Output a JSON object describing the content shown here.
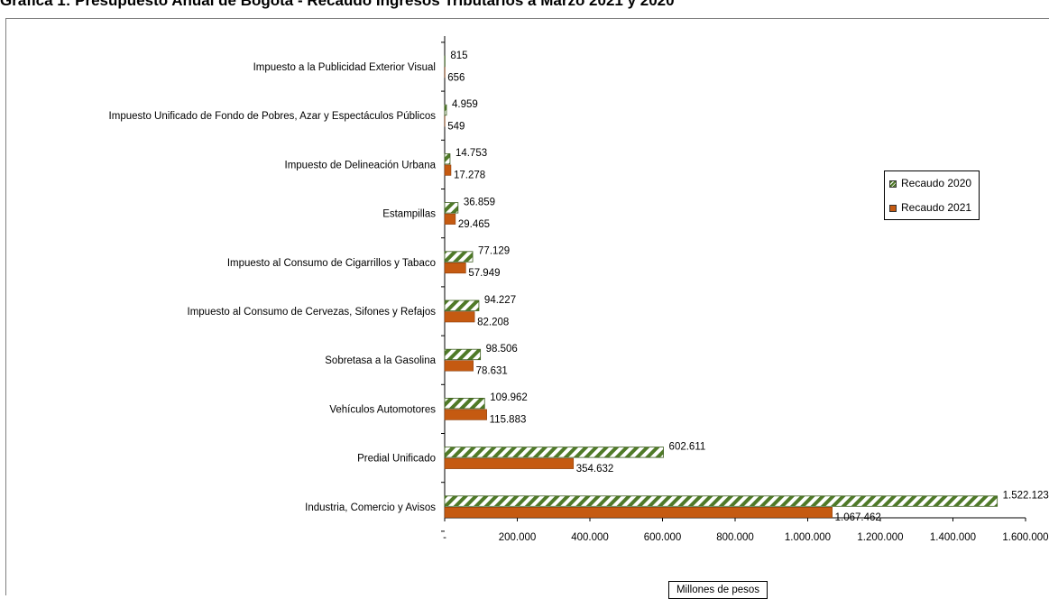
{
  "page_title": "Gráfica 1: Presupuesto Anual de Bogotá - Recaudo Ingresos Tributarios a Marzo 2021 y 2020",
  "chart_data": {
    "type": "bar",
    "orientation": "horizontal",
    "categories": [
      "Impuesto a la Publicidad Exterior Visual",
      "Impuesto Unificado de Fondo de Pobres, Azar y Espectáculos Públicos",
      "Impuesto de Delineación Urbana",
      "Estampillas",
      "Impuesto al Consumo de Cigarrillos y Tabaco",
      "Impuesto al Consumo de Cervezas, Sifones y Refajos",
      "Sobretasa a la Gasolina",
      "Vehículos Automotores",
      "Predial Unificado",
      "Industria, Comercio y Avisos"
    ],
    "series": [
      {
        "name": "Recaudo 2020",
        "color": "#4f7a28",
        "pattern": "diagonal-stripes",
        "values": [
          815,
          4959,
          14753,
          36859,
          77129,
          94227,
          98506,
          109962,
          602611,
          1522123
        ],
        "labels": [
          "815",
          "4.959",
          "14.753",
          "36.859",
          "77.129",
          "94.227",
          "98.506",
          "109.962",
          "602.611",
          "1.522.123"
        ]
      },
      {
        "name": "Recaudo 2021",
        "color": "#c55a11",
        "pattern": "solid",
        "values": [
          656,
          549,
          17278,
          29465,
          57949,
          82208,
          78631,
          115883,
          354632,
          1067462
        ],
        "labels": [
          "656",
          "549",
          "17.278",
          "29.465",
          "57.949",
          "82.208",
          "78.631",
          "115.883",
          "354.632",
          "1.067.462"
        ]
      }
    ],
    "xlim": [
      0,
      1600000
    ],
    "xticks": [
      0,
      200000,
      400000,
      600000,
      800000,
      1000000,
      1200000,
      1400000,
      1600000
    ],
    "xtick_labels": [
      "-",
      "200.000",
      "400.000",
      "600.000",
      "800.000",
      "1.000.000",
      "1.200.000",
      "1.400.000",
      "1.600.000"
    ],
    "xlabel": "Millones de pesos",
    "legend_position": "right"
  }
}
